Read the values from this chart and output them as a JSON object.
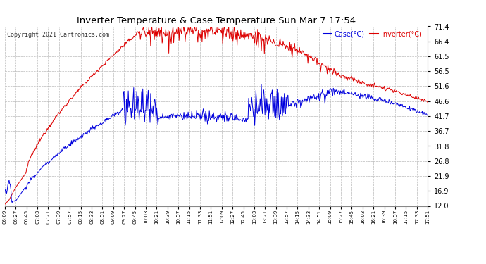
{
  "title": "Inverter Temperature & Case Temperature Sun Mar 7 17:54",
  "copyright": "Copyright 2021 Cartronics.com",
  "legend_case": "Case(°C)",
  "legend_inverter": "Inverter(°C)",
  "yticks": [
    12.0,
    16.9,
    21.9,
    26.8,
    31.8,
    36.7,
    41.7,
    46.6,
    51.6,
    56.5,
    61.5,
    66.4,
    71.4
  ],
  "ymin": 12.0,
  "ymax": 71.4,
  "bg_color": "#ffffff",
  "grid_color": "#bbbbbb",
  "case_color": "#0000dd",
  "inverter_color": "#dd0000",
  "xtick_labels": [
    "06:09",
    "06:27",
    "06:45",
    "07:03",
    "07:21",
    "07:39",
    "07:57",
    "08:15",
    "08:33",
    "08:51",
    "09:09",
    "09:27",
    "09:45",
    "10:03",
    "10:21",
    "10:39",
    "10:57",
    "11:15",
    "11:33",
    "11:51",
    "12:09",
    "12:27",
    "12:45",
    "13:03",
    "13:21",
    "13:39",
    "13:57",
    "14:15",
    "14:33",
    "14:51",
    "15:09",
    "15:27",
    "15:45",
    "16:03",
    "16:21",
    "16:39",
    "16:57",
    "17:15",
    "17:33",
    "17:51"
  ]
}
